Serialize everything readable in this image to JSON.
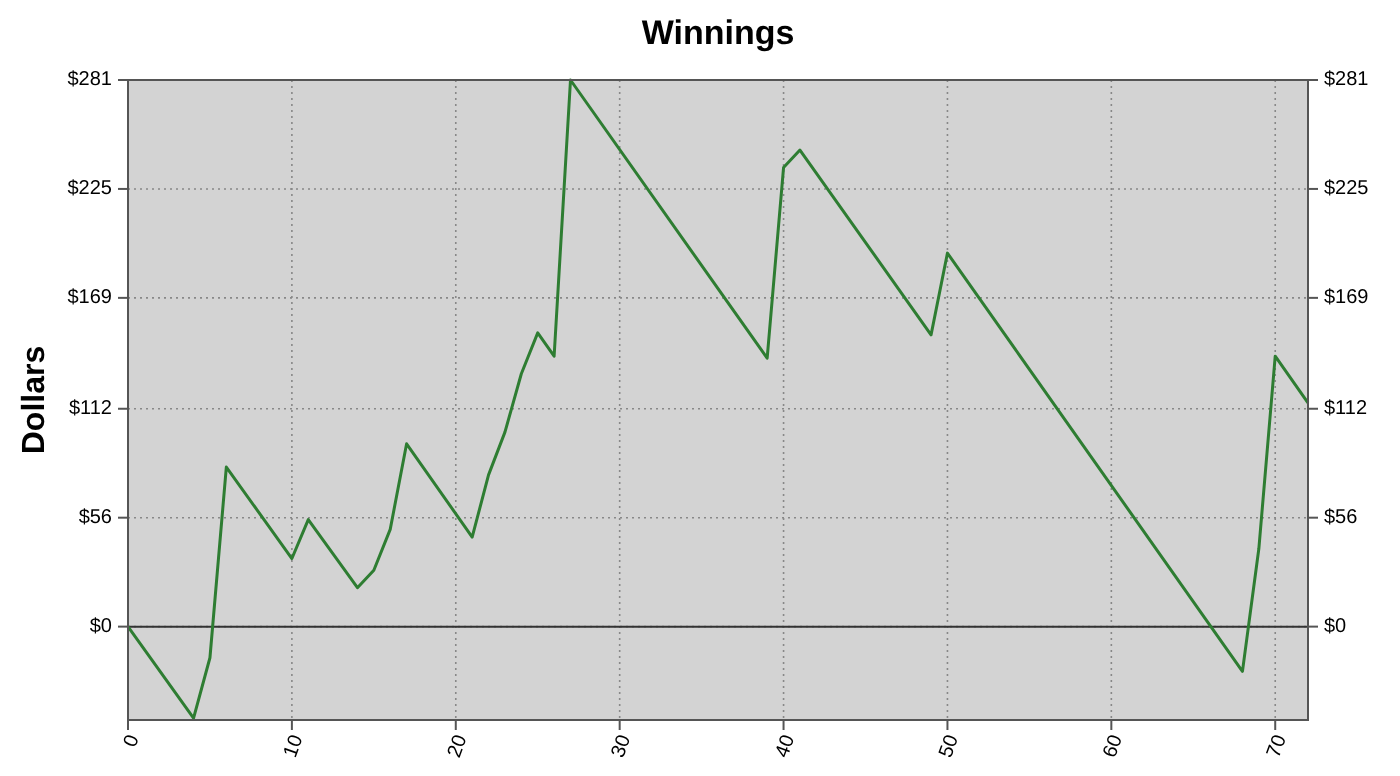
{
  "chart_data": {
    "type": "line",
    "title": "Winnings",
    "ylabel": "Dollars",
    "x": [
      0,
      4,
      5,
      6,
      10,
      11,
      14,
      15,
      16,
      17,
      21,
      22,
      23,
      24,
      25,
      26,
      27,
      39,
      40,
      41,
      49,
      50,
      68,
      69,
      70,
      72
    ],
    "series": [
      {
        "color": "#2e7d32",
        "values": [
          0,
          -47,
          -16,
          82,
          35,
          55,
          20,
          29,
          50,
          94,
          46,
          78,
          100,
          130,
          151,
          139,
          281,
          138,
          236,
          245,
          150,
          192,
          -23,
          40,
          139,
          115
        ]
      }
    ],
    "xlim": [
      0,
      72
    ],
    "xticks": [
      0,
      10,
      20,
      30,
      40,
      50,
      60,
      70
    ],
    "ylim": [
      -48,
      281
    ],
    "yticks": [
      {
        "value": 0,
        "label": "$0"
      },
      {
        "value": 56,
        "label": "$56"
      },
      {
        "value": 112,
        "label": "$112"
      },
      {
        "value": 169,
        "label": "$169"
      },
      {
        "value": 225,
        "label": "$225"
      },
      {
        "value": 281,
        "label": "$281"
      }
    ],
    "y2lim": [
      -48,
      281
    ],
    "y2ticks": [
      {
        "value": 0,
        "label": "$0"
      },
      {
        "value": 56,
        "label": "$56"
      },
      {
        "value": 112,
        "label": "$112"
      },
      {
        "value": 169,
        "label": "$169"
      },
      {
        "value": 225,
        "label": "$225"
      },
      {
        "value": 281,
        "label": "$281"
      }
    ],
    "ref_lines": [
      {
        "axis": "y",
        "value": 0,
        "color": "#333333"
      }
    ],
    "grid": true,
    "marker": "none",
    "line_style": "solid"
  }
}
